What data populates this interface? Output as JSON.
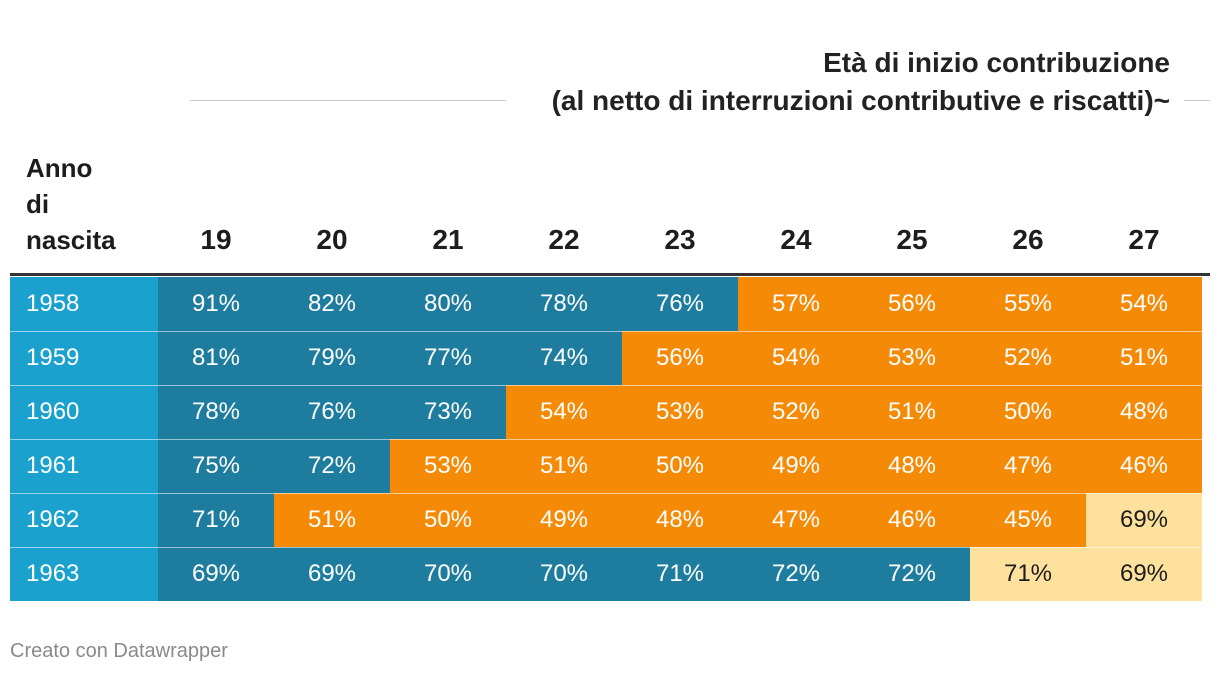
{
  "header": {
    "title_line1": "Età di inizio contribuzione",
    "title_line2": "(al netto di interruzioni contributive e riscatti)~"
  },
  "row_header": {
    "line1": "Anno",
    "line2": "di",
    "line3": "nascita"
  },
  "footer": {
    "credit": "Creato con Datawrapper"
  },
  "colors": {
    "year_column": "#1aa1ce",
    "blue": "#1e7d9e",
    "orange": "#f58a07",
    "light_yellow": "#fde19c",
    "text_light": "#ffffff",
    "text_dark": "#1d1d1d"
  },
  "chart_data": {
    "type": "table",
    "title": "Età di inizio contribuzione (al netto di interruzioni contributive e riscatti)~",
    "row_label_header": "Anno di nascita",
    "columns": [
      "19",
      "20",
      "21",
      "22",
      "23",
      "24",
      "25",
      "26",
      "27"
    ],
    "rows": [
      {
        "year": "1958",
        "values": [
          "91%",
          "82%",
          "80%",
          "78%",
          "76%",
          "57%",
          "56%",
          "55%",
          "54%"
        ],
        "categories": [
          "blue",
          "blue",
          "blue",
          "blue",
          "blue",
          "orange",
          "orange",
          "orange",
          "orange"
        ]
      },
      {
        "year": "1959",
        "values": [
          "81%",
          "79%",
          "77%",
          "74%",
          "56%",
          "54%",
          "53%",
          "52%",
          "51%"
        ],
        "categories": [
          "blue",
          "blue",
          "blue",
          "blue",
          "orange",
          "orange",
          "orange",
          "orange",
          "orange"
        ]
      },
      {
        "year": "1960",
        "values": [
          "78%",
          "76%",
          "73%",
          "54%",
          "53%",
          "52%",
          "51%",
          "50%",
          "48%"
        ],
        "categories": [
          "blue",
          "blue",
          "blue",
          "orange",
          "orange",
          "orange",
          "orange",
          "orange",
          "orange"
        ]
      },
      {
        "year": "1961",
        "values": [
          "75%",
          "72%",
          "53%",
          "51%",
          "50%",
          "49%",
          "48%",
          "47%",
          "46%"
        ],
        "categories": [
          "blue",
          "blue",
          "orange",
          "orange",
          "orange",
          "orange",
          "orange",
          "orange",
          "orange"
        ]
      },
      {
        "year": "1962",
        "values": [
          "71%",
          "51%",
          "50%",
          "49%",
          "48%",
          "47%",
          "46%",
          "45%",
          "69%"
        ],
        "categories": [
          "blue",
          "orange",
          "orange",
          "orange",
          "orange",
          "orange",
          "orange",
          "orange",
          "light_yellow"
        ]
      },
      {
        "year": "1963",
        "values": [
          "69%",
          "69%",
          "70%",
          "70%",
          "71%",
          "72%",
          "72%",
          "71%",
          "69%"
        ],
        "categories": [
          "blue",
          "blue",
          "blue",
          "blue",
          "blue",
          "blue",
          "blue",
          "light_yellow",
          "light_yellow"
        ]
      }
    ]
  }
}
